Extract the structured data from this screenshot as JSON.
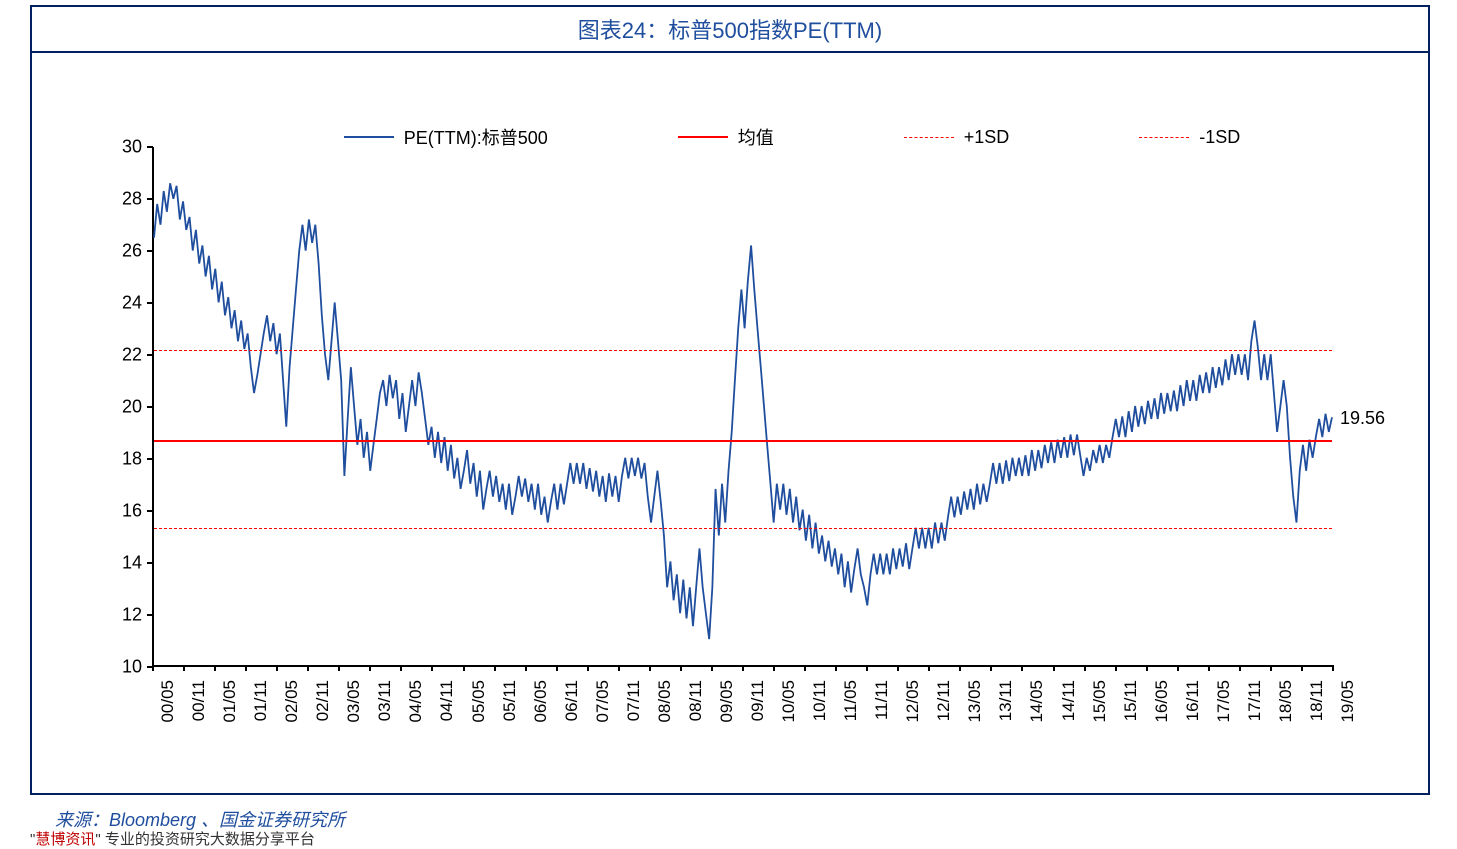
{
  "title": "图表24：标普500指数PE(TTM)",
  "source": "来源：Bloomberg 、国金证券研究所",
  "footer_prefix": "\"",
  "footer_red": "慧博资讯",
  "footer_suffix": "\" 专业的投资研究大数据分享平台",
  "chart": {
    "type": "line",
    "ylim": [
      10,
      30
    ],
    "ytick_step": 2,
    "yticks": [
      10,
      12,
      14,
      16,
      18,
      20,
      22,
      24,
      26,
      28,
      30
    ],
    "x_labels": [
      "00/05",
      "00/11",
      "01/05",
      "01/11",
      "02/05",
      "02/11",
      "03/05",
      "03/11",
      "04/05",
      "04/11",
      "05/05",
      "05/11",
      "06/05",
      "06/11",
      "07/05",
      "07/11",
      "08/05",
      "08/11",
      "09/05",
      "09/11",
      "10/05",
      "10/11",
      "11/05",
      "11/11",
      "12/05",
      "12/11",
      "13/05",
      "13/11",
      "14/05",
      "14/11",
      "15/05",
      "15/11",
      "16/05",
      "16/11",
      "17/05",
      "17/11",
      "18/05",
      "18/11",
      "19/05"
    ],
    "legend": [
      {
        "label": "PE(TTM):标普500",
        "color": "#1f4e9e",
        "style": "solid",
        "width": 2
      },
      {
        "label": "均值",
        "color": "#ff0000",
        "style": "solid",
        "width": 2
      },
      {
        "label": "+1SD",
        "color": "#ff0000",
        "style": "dashed",
        "width": 1.5
      },
      {
        "label": "-1SD",
        "color": "#ff0000",
        "style": "dashed",
        "width": 1.5
      }
    ],
    "mean_value": 18.75,
    "plus_1sd": 22.2,
    "minus_1sd": 15.35,
    "end_value": 19.56,
    "end_value_label": "19.56",
    "series_color": "#1f4e9e",
    "axis_color": "#000000",
    "background_color": "#ffffff",
    "frame_color": "#002060",
    "label_fontsize": 18,
    "title_fontsize": 22,
    "pe_series": [
      26.5,
      27.8,
      27.0,
      28.3,
      27.5,
      28.6,
      28.0,
      28.5,
      27.2,
      27.9,
      26.8,
      27.3,
      26.0,
      26.8,
      25.5,
      26.2,
      25.0,
      25.8,
      24.5,
      25.3,
      24.0,
      24.8,
      23.5,
      24.2,
      23.0,
      23.7,
      22.5,
      23.3,
      22.2,
      22.8,
      21.5,
      20.5,
      21.2,
      22.0,
      22.8,
      23.5,
      22.5,
      23.2,
      22.0,
      22.8,
      21.0,
      19.2,
      21.5,
      23.0,
      24.5,
      26.0,
      27.0,
      26.0,
      27.2,
      26.3,
      27.0,
      25.5,
      23.5,
      22.0,
      21.0,
      22.5,
      24.0,
      22.5,
      21.0,
      17.3,
      19.5,
      21.5,
      20.0,
      18.5,
      19.5,
      18.0,
      19.0,
      17.5,
      18.5,
      19.5,
      20.5,
      21.0,
      20.0,
      21.2,
      20.3,
      21.0,
      19.5,
      20.5,
      19.0,
      20.0,
      21.0,
      20.0,
      21.3,
      20.5,
      19.5,
      18.5,
      19.2,
      18.0,
      19.0,
      17.8,
      18.8,
      17.5,
      18.5,
      17.2,
      18.0,
      16.8,
      17.5,
      18.3,
      17.0,
      17.8,
      16.5,
      17.5,
      16.0,
      16.8,
      17.5,
      16.5,
      17.3,
      16.3,
      17.0,
      16.0,
      17.0,
      15.8,
      16.5,
      17.3,
      16.5,
      17.2,
      16.3,
      17.0,
      16.0,
      17.0,
      15.8,
      16.5,
      15.5,
      16.3,
      17.0,
      16.0,
      17.0,
      16.2,
      17.0,
      17.8,
      17.0,
      17.8,
      17.0,
      17.8,
      16.8,
      17.6,
      16.7,
      17.5,
      16.5,
      17.3,
      16.3,
      17.4,
      16.5,
      17.3,
      16.3,
      17.3,
      18.0,
      17.2,
      18.0,
      17.3,
      18.0,
      17.2,
      17.8,
      16.5,
      15.5,
      16.5,
      17.5,
      16.3,
      15.0,
      13.0,
      14.0,
      12.5,
      13.5,
      12.0,
      13.3,
      11.8,
      13.0,
      11.5,
      13.0,
      14.5,
      13.0,
      12.0,
      11.0,
      13.0,
      16.8,
      15.0,
      17.0,
      15.5,
      17.5,
      19.0,
      21.0,
      23.0,
      24.5,
      23.0,
      24.8,
      26.2,
      24.5,
      23.0,
      21.5,
      20.0,
      18.5,
      17.0,
      15.5,
      17.0,
      16.0,
      17.0,
      15.8,
      16.8,
      15.5,
      16.5,
      15.2,
      16.0,
      14.8,
      15.8,
      14.5,
      15.5,
      14.3,
      15.0,
      14.0,
      14.8,
      13.8,
      14.5,
      13.5,
      14.3,
      13.0,
      14.0,
      12.8,
      13.7,
      14.5,
      13.5,
      13.0,
      12.3,
      13.5,
      14.3,
      13.5,
      14.3,
      13.5,
      14.3,
      13.5,
      14.5,
      13.7,
      14.5,
      13.8,
      14.7,
      13.7,
      14.5,
      15.3,
      14.5,
      15.3,
      14.5,
      15.3,
      14.5,
      15.5,
      14.7,
      15.5,
      14.8,
      15.7,
      16.5,
      15.7,
      16.5,
      15.8,
      16.7,
      16.0,
      16.8,
      16.0,
      17.0,
      16.2,
      17.0,
      16.3,
      17.0,
      17.8,
      17.0,
      17.8,
      17.0,
      17.9,
      17.1,
      18.0,
      17.3,
      18.0,
      17.3,
      18.1,
      17.3,
      18.3,
      17.5,
      18.3,
      17.6,
      18.5,
      17.8,
      18.6,
      17.8,
      18.7,
      18.0,
      18.8,
      18.0,
      18.9,
      18.1,
      18.9,
      18.1,
      17.3,
      18.0,
      17.5,
      18.3,
      17.8,
      18.5,
      17.8,
      18.5,
      18.0,
      18.8,
      19.5,
      18.8,
      19.6,
      18.8,
      19.8,
      19.0,
      20.0,
      19.2,
      20.0,
      19.3,
      20.2,
      19.5,
      20.3,
      19.5,
      20.5,
      19.7,
      20.5,
      19.8,
      20.6,
      19.8,
      20.8,
      20.0,
      21.0,
      20.2,
      21.0,
      20.2,
      21.2,
      20.5,
      21.3,
      20.5,
      21.5,
      20.7,
      21.5,
      20.8,
      21.8,
      21.0,
      22.0,
      21.2,
      22.0,
      21.2,
      22.0,
      21.0,
      22.5,
      23.3,
      22.3,
      21.0,
      22.0,
      21.0,
      22.0,
      20.5,
      19.0,
      20.0,
      21.0,
      20.0,
      18.0,
      16.5,
      15.5,
      17.5,
      18.5,
      17.5,
      18.7,
      18.0,
      18.8,
      19.5,
      18.8,
      19.7,
      19.0,
      19.56
    ]
  }
}
